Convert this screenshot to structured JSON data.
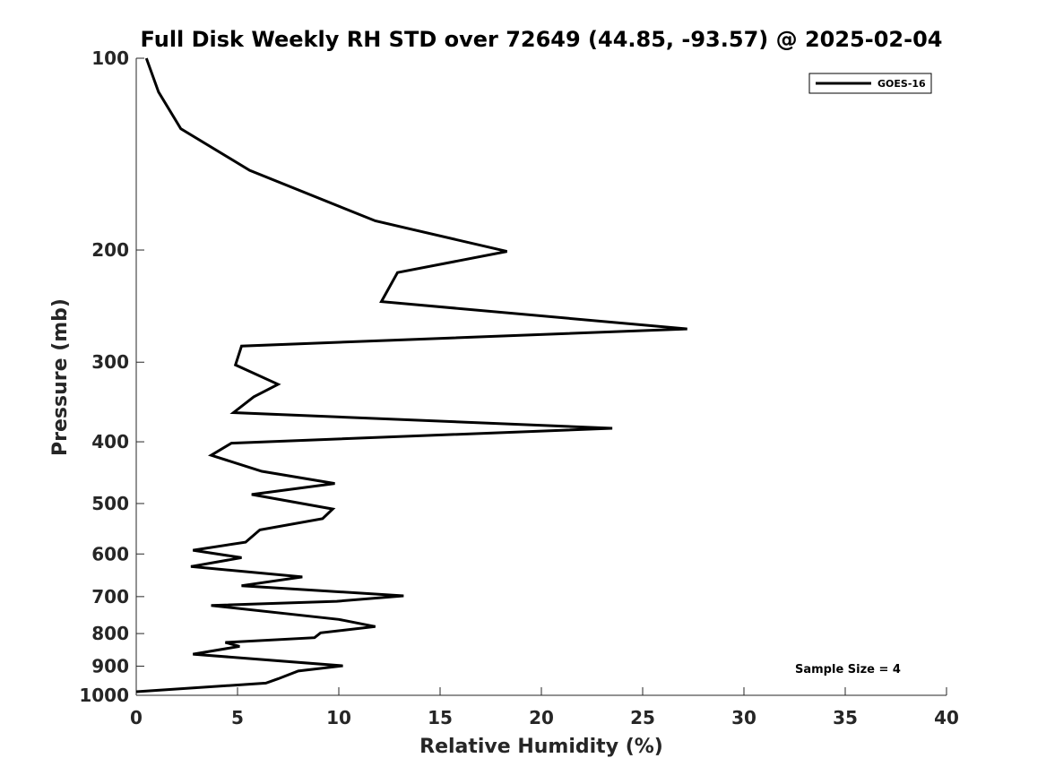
{
  "chart_data": {
    "type": "line",
    "title": "Full Disk Weekly RH STD over 72649 (44.85, -93.57) @ 2025-02-04",
    "xlabel": "Relative Humidity (%)",
    "ylabel": "Pressure (mb)",
    "xlim": [
      0,
      40
    ],
    "ylim": [
      100,
      1000
    ],
    "y_scale": "log",
    "y_direction": "reversed",
    "xticks": [
      0,
      5,
      10,
      15,
      20,
      25,
      30,
      35,
      40
    ],
    "yticks": [
      100,
      200,
      300,
      400,
      500,
      600,
      700,
      800,
      900,
      1000
    ],
    "grid": false,
    "legend_position": "top-right",
    "annotation": "Sample Size = 4",
    "series": [
      {
        "name": "GOES-16",
        "color": "#000000",
        "rh": [
          0.5,
          1.1,
          2.2,
          5.6,
          11.8,
          18.3,
          12.9,
          12.1,
          27.2,
          5.2,
          4.9,
          7.0,
          5.8,
          4.8,
          23.5,
          4.7,
          3.7,
          6.2,
          9.8,
          5.7,
          9.7,
          9.2,
          6.1,
          5.4,
          2.8,
          5.2,
          2.7,
          8.2,
          5.2,
          13.2,
          9.9,
          3.7,
          10.0,
          11.8,
          9.1,
          8.8,
          4.4,
          5.1,
          2.8,
          10.2,
          8.0,
          7.0,
          6.4,
          0.0
        ],
        "pressure": [
          100,
          113,
          129,
          150,
          180,
          201,
          217,
          241,
          266,
          283,
          303,
          325,
          340,
          360,
          381,
          402,
          420,
          445,
          465,
          484,
          510,
          528,
          550,
          575,
          592,
          608,
          628,
          652,
          673,
          698,
          712,
          723,
          760,
          780,
          798,
          812,
          826,
          838,
          862,
          899,
          916,
          942,
          957,
          987
        ]
      }
    ]
  }
}
